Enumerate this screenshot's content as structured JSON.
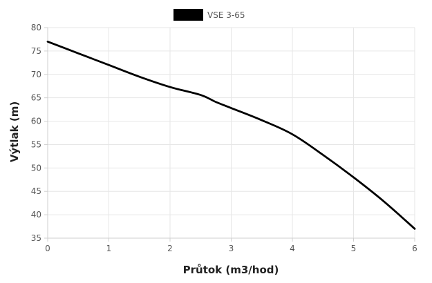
{
  "chart_data": {
    "type": "line",
    "title": "",
    "xlabel": "Průtok (m3/hod)",
    "ylabel": "Výtlak (m)",
    "xlim": [
      0,
      6
    ],
    "ylim": [
      35,
      80
    ],
    "x_ticks": [
      "0",
      "1",
      "2",
      "3",
      "4",
      "5",
      "6"
    ],
    "y_ticks": [
      "80",
      "75",
      "70",
      "65",
      "60",
      "55",
      "50",
      "45",
      "40",
      "35"
    ],
    "grid": true,
    "legend_position": "top-center",
    "series": [
      {
        "name": "VSE 3-65",
        "color": "#000000",
        "x": [
          0,
          0.5,
          1,
          1.5,
          2,
          2.5,
          2.75,
          3,
          3.5,
          4,
          4.5,
          5,
          5.5,
          6
        ],
        "y": [
          77,
          74.5,
          72,
          69.5,
          67.3,
          65.6,
          64.1,
          62.8,
          60.2,
          57.2,
          52.8,
          48.0,
          42.8,
          37.0
        ]
      }
    ]
  }
}
